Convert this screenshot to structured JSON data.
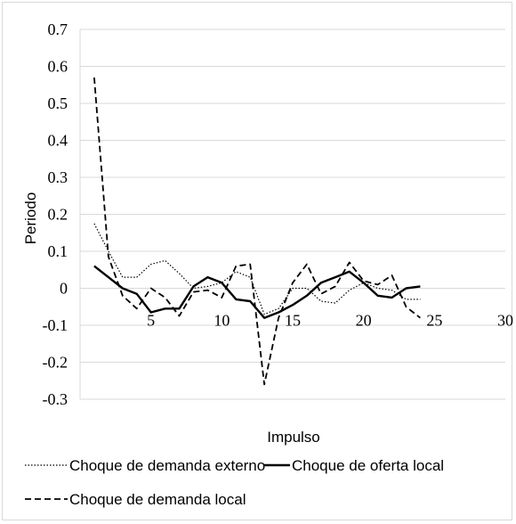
{
  "chart_data": {
    "type": "line",
    "xlabel": "Impulso",
    "ylabel": "Periodo",
    "xlim": [
      0,
      30
    ],
    "ylim": [
      -0.3,
      0.7
    ],
    "x_ticks": [
      "5",
      "10",
      "15",
      "20",
      "25",
      "30"
    ],
    "y_ticks": [
      "0.7",
      "0.6",
      "0.5",
      "0.4",
      "0.3",
      "0.2",
      "0.1",
      "0",
      "-0.1",
      "-0.2",
      "-0.3"
    ],
    "grid": "horizontal",
    "legend_position": "bottom",
    "x": [
      1,
      2,
      3,
      4,
      5,
      6,
      7,
      8,
      9,
      10,
      11,
      12,
      13,
      14,
      15,
      16,
      17,
      18,
      19,
      20,
      21,
      22,
      23,
      24
    ],
    "series": [
      {
        "name": "Choque de demanda externo",
        "style": "dotted",
        "values": [
          0.175,
          0.1,
          0.03,
          0.03,
          0.065,
          0.075,
          0.04,
          0.0,
          0.005,
          0.015,
          0.045,
          0.03,
          -0.07,
          -0.055,
          0.0,
          0.0,
          -0.035,
          -0.04,
          -0.005,
          0.015,
          0.0,
          -0.005,
          -0.03,
          -0.03
        ]
      },
      {
        "name": "Choque de oferta local",
        "style": "solid",
        "values": [
          0.06,
          0.03,
          0.0,
          -0.015,
          -0.065,
          -0.055,
          -0.055,
          0.005,
          0.03,
          0.015,
          -0.03,
          -0.035,
          -0.08,
          -0.065,
          -0.045,
          -0.02,
          0.015,
          0.03,
          0.045,
          0.015,
          -0.02,
          -0.025,
          0.0,
          0.005
        ]
      },
      {
        "name": "Choque de demanda local",
        "style": "dashed",
        "values": [
          0.57,
          0.085,
          -0.02,
          -0.055,
          0.0,
          -0.025,
          -0.075,
          -0.01,
          -0.005,
          -0.025,
          0.06,
          0.065,
          -0.26,
          -0.08,
          0.015,
          0.065,
          -0.015,
          0.005,
          0.07,
          0.02,
          0.01,
          0.035,
          -0.05,
          -0.08
        ]
      }
    ]
  },
  "colors": {
    "line": "#000000",
    "grid": "#d9d9d9"
  }
}
